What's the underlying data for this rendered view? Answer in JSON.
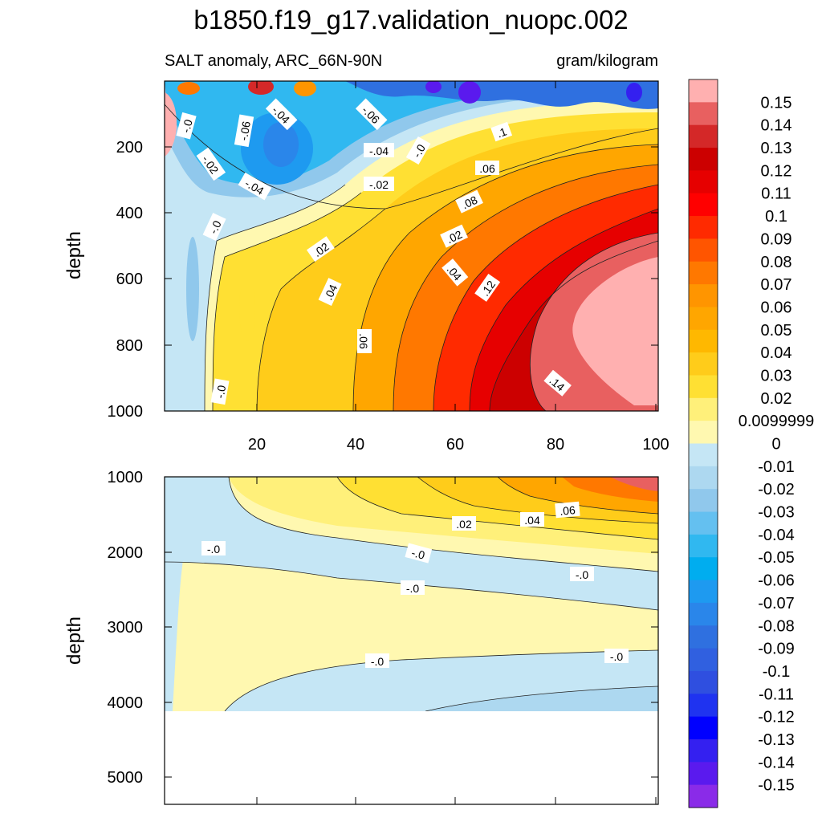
{
  "chart_data": {
    "type": "contour",
    "title": "b1850.f19_g17.validation_nuopc.002",
    "subtitle_left": "SALT anomaly, ARC_66N-90N",
    "subtitle_right": "gram/kilogram",
    "xlabel": "",
    "panels": [
      {
        "name": "upper",
        "ylabel": "depth",
        "ylim": [
          1000,
          0
        ],
        "xlim": [
          0,
          100
        ],
        "y_ticks": [
          "200",
          "400",
          "600",
          "800",
          "1000"
        ],
        "x_ticks": [
          "20",
          "40",
          "60",
          "80",
          "100"
        ],
        "contour_labels": [
          "-.0",
          "-.06",
          "-.04",
          "-.06",
          "-.02",
          "-.04",
          ".02",
          "-.04",
          "-.0",
          ".04",
          "-.02",
          ".06",
          "-.0",
          ".08",
          ".02",
          ".1",
          ".04",
          ".12",
          ".06",
          "-.0",
          ".14"
        ]
      },
      {
        "name": "lower",
        "ylabel": "depth",
        "ylim": [
          5300,
          1000
        ],
        "xlim": [
          0,
          100
        ],
        "y_ticks": [
          "1000",
          "2000",
          "3000",
          "4000",
          "5000"
        ],
        "contour_labels": [
          ".06",
          ".04",
          ".02",
          "-.0",
          "-.0",
          "-.0",
          "-.0",
          "-.0",
          "-.0"
        ]
      }
    ],
    "colorbar": {
      "labels": [
        "0.15",
        "0.14",
        "0.13",
        "0.12",
        "0.11",
        "0.1",
        "0.09",
        "0.08",
        "0.07",
        "0.06",
        "0.05",
        "0.04",
        "0.03",
        "0.02",
        "0.0099999",
        "0",
        "-0.01",
        "-0.02",
        "-0.03",
        "-0.04",
        "-0.05",
        "-0.06",
        "-0.07",
        "-0.08",
        "-0.09",
        "-0.1",
        "-0.11",
        "-0.12",
        "-0.13",
        "-0.14",
        "-0.15"
      ],
      "colors": [
        "#FFB0B0",
        "#E86060",
        "#D42828",
        "#CC0000",
        "#E60000",
        "#FF0000",
        "#FF2A00",
        "#FF5500",
        "#FF7800",
        "#FF9500",
        "#FFA600",
        "#FFB800",
        "#FFCC1A",
        "#FFE033",
        "#FFF07A",
        "#FFF8B0",
        "#C5E6F5",
        "#ADD8F0",
        "#90C8EC",
        "#64C0F0",
        "#30B8F0",
        "#00ADEF",
        "#1E9AF0",
        "#2A86EA",
        "#2F70E0",
        "#3060E0",
        "#2F4FE0",
        "#1F33F0",
        "#0000FF",
        "#3420F0",
        "#5A1AEE",
        "#8A2BE8"
      ]
    }
  }
}
